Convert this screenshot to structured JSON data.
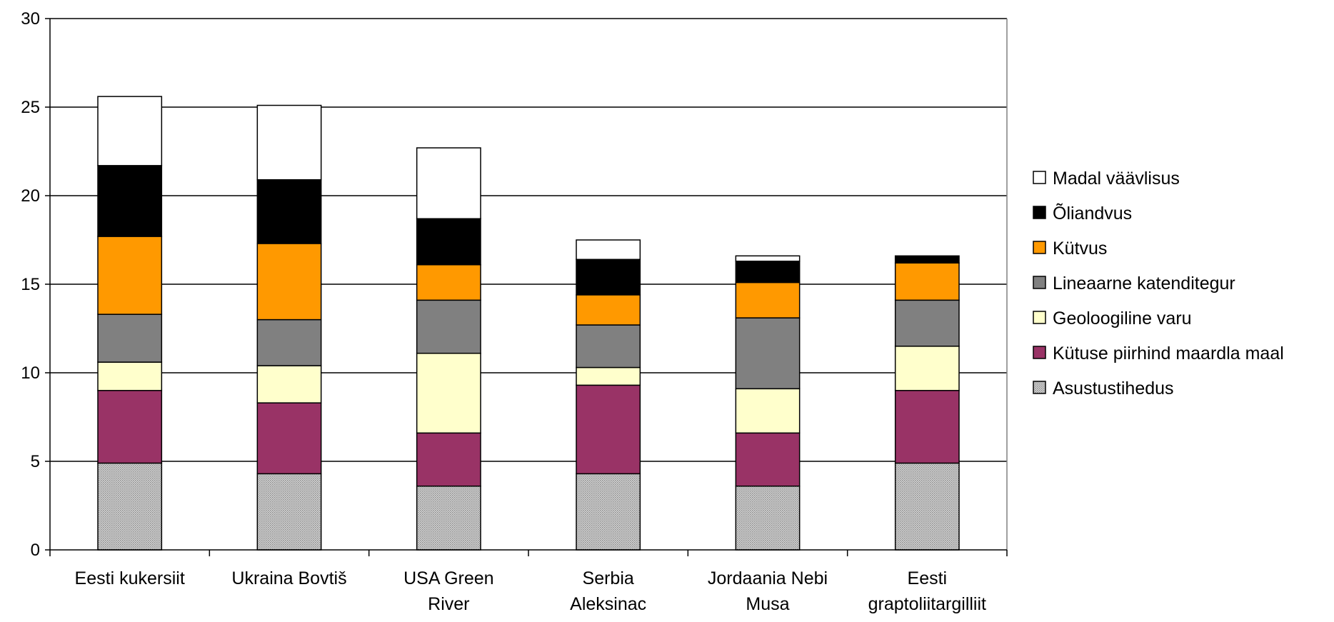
{
  "chart_data": {
    "type": "bar",
    "stacked": true,
    "title": "",
    "xlabel": "",
    "ylabel": "",
    "ylim": [
      0,
      30
    ],
    "yticks": [
      "0",
      "5",
      "10",
      "15",
      "20",
      "25",
      "30"
    ],
    "grid": true,
    "legend_position": "right",
    "categories": [
      [
        "Eesti kukersiit"
      ],
      [
        "Ukraina Bovtiš"
      ],
      [
        "USA Green",
        "River"
      ],
      [
        "Serbia",
        "Aleksinac"
      ],
      [
        "Jordaania Nebi",
        "Musa"
      ],
      [
        "Eesti",
        "graptoliitargilliit"
      ]
    ],
    "series": [
      {
        "name": "Asustustihedus",
        "color": "#b5b5b5",
        "pattern": "dotted",
        "values": [
          4.9,
          4.3,
          3.6,
          4.3,
          3.6,
          4.9
        ]
      },
      {
        "name": "Kütuse piirhind maardla maal",
        "color": "#993366",
        "values": [
          4.1,
          4.0,
          3.0,
          5.0,
          3.0,
          4.1
        ]
      },
      {
        "name": "Geoloogiline varu",
        "color": "#ffffcc",
        "values": [
          1.6,
          2.1,
          4.5,
          1.0,
          2.5,
          2.5
        ]
      },
      {
        "name": "Lineaarne katenditegur",
        "color": "#808080",
        "values": [
          2.7,
          2.6,
          3.0,
          2.4,
          4.0,
          2.6
        ]
      },
      {
        "name": "Kütvus",
        "color": "#ff9900",
        "values": [
          4.4,
          4.3,
          2.0,
          1.7,
          2.0,
          2.1
        ]
      },
      {
        "name": "Õliandvus",
        "color": "#000000",
        "values": [
          4.0,
          3.6,
          2.6,
          2.0,
          1.2,
          0.4
        ]
      },
      {
        "name": "Madal väävlisus",
        "color": "#ffffff",
        "values": [
          3.9,
          4.2,
          4.0,
          1.1,
          0.3,
          0.0
        ]
      }
    ]
  }
}
